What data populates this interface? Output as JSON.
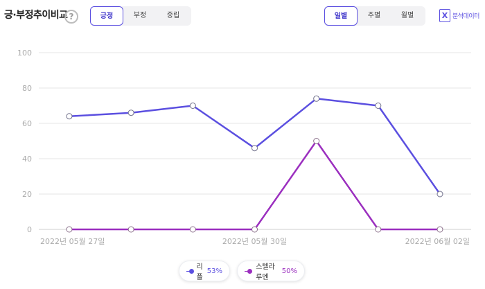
{
  "header": {
    "title": "긍·부정추이비교",
    "help": "?"
  },
  "sentiment_tabs": [
    {
      "label": "긍정",
      "active": true
    },
    {
      "label": "부정",
      "active": false
    },
    {
      "label": "중립",
      "active": false
    }
  ],
  "period_tabs": [
    {
      "label": "일별",
      "active": true
    },
    {
      "label": "주별",
      "active": false
    },
    {
      "label": "월별",
      "active": false
    }
  ],
  "export": {
    "icon": "excel-icon",
    "glyph": "X",
    "label": "분석데이터"
  },
  "chart_data": {
    "type": "line",
    "title": "",
    "xlabel": "",
    "ylabel": "",
    "ylim": [
      0,
      100
    ],
    "yticks": [
      0,
      20,
      40,
      60,
      80,
      100
    ],
    "grid": true,
    "legend_position": "bottom-center",
    "x_tick_labels": [
      {
        "index": 0,
        "label": "2022년 05월 27일"
      },
      {
        "index": 3,
        "label": "2022년 05월 30일"
      },
      {
        "index": 6,
        "label": "2022년 06월 02일"
      }
    ],
    "x_count": 7,
    "series": [
      {
        "name": "리플",
        "pct": "53%",
        "color": "#5b4fe0",
        "values": [
          64,
          66,
          70,
          46,
          74,
          70,
          20
        ]
      },
      {
        "name": "스텔라루멘",
        "pct": "50%",
        "color": "#9b2fbf",
        "values": [
          0,
          0,
          0,
          0,
          50,
          0,
          0
        ]
      }
    ]
  }
}
